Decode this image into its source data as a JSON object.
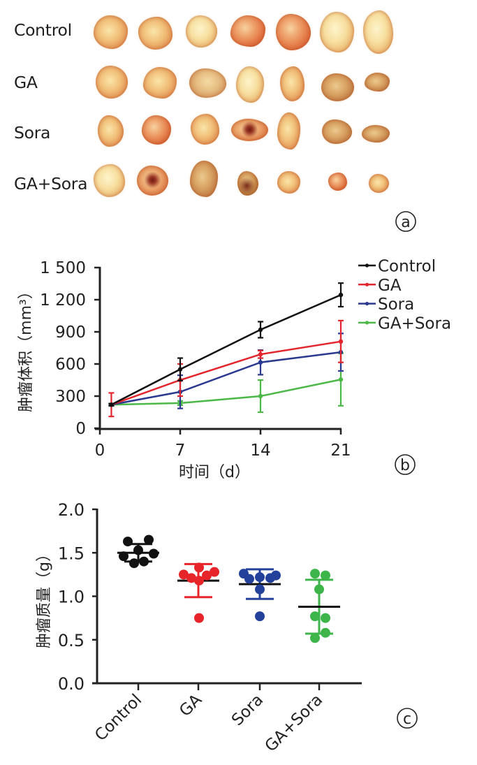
{
  "figure": {
    "panel_a": {
      "panel_label": "a",
      "groups": [
        "Control",
        "GA",
        "Sora",
        "GA+Sora"
      ],
      "specimens_per_group": 7
    }
  },
  "chart_data": [
    {
      "type": "line",
      "title": "",
      "panel_label": "b",
      "xlabel": "时间（d）",
      "ylabel": "肿瘤体积（mm³）",
      "x": [
        1,
        7,
        14,
        21
      ],
      "xlim": [
        0,
        21
      ],
      "ylim": [
        0,
        1500
      ],
      "xticks": [
        0,
        7,
        14,
        21
      ],
      "xtick_labels": [
        "0",
        "7",
        "14",
        "21"
      ],
      "yticks": [
        0,
        300,
        600,
        900,
        1200,
        1500
      ],
      "ytick_labels": [
        "0",
        "300",
        "600",
        "900",
        "1 200",
        "1 500"
      ],
      "grid": false,
      "legend": "top-right",
      "series": [
        {
          "name": "Control",
          "color": "#111111",
          "values": [
            220,
            550,
            920,
            1245
          ],
          "error": [
            10,
            105,
            75,
            110
          ]
        },
        {
          "name": "GA",
          "color": "#e3262d",
          "values": [
            220,
            450,
            690,
            810
          ],
          "error": [
            110,
            150,
            35,
            195
          ]
        },
        {
          "name": "Sora",
          "color": "#2b3990",
          "values": [
            220,
            340,
            615,
            710
          ],
          "error": [
            10,
            155,
            115,
            175
          ]
        },
        {
          "name": "GA+Sora",
          "color": "#4cb848",
          "values": [
            220,
            235,
            300,
            455
          ],
          "error": [
            10,
            20,
            150,
            245
          ]
        }
      ]
    },
    {
      "type": "scatter",
      "title": "",
      "panel_label": "c",
      "xlabel": "",
      "ylabel": "肿瘤质量（g）",
      "categories": [
        "Control",
        "GA",
        "Sora",
        "GA+Sora"
      ],
      "ylim": [
        0,
        2.0
      ],
      "yticks": [
        0,
        0.5,
        1.0,
        1.5,
        2.0
      ],
      "ytick_labels": [
        "0.0",
        "0.5",
        "1.0",
        "1.5",
        "2.0"
      ],
      "grid": false,
      "mean_line_color": "#111111",
      "series": [
        {
          "name": "Control",
          "color": "#111111",
          "points": [
            1.63,
            1.65,
            1.46,
            1.53,
            1.49,
            1.38,
            1.4
          ],
          "mean": 1.5,
          "sd": 0.1
        },
        {
          "name": "GA",
          "color": "#e8242b",
          "points": [
            1.25,
            1.33,
            1.28,
            1.21,
            1.24,
            1.18,
            0.75
          ],
          "mean": 1.18,
          "sd": 0.19
        },
        {
          "name": "Sora",
          "color": "#23409a",
          "points": [
            1.26,
            1.2,
            1.22,
            1.21,
            1.24,
            1.08,
            0.77
          ],
          "mean": 1.14,
          "sd": 0.17
        },
        {
          "name": "GA+Sora",
          "color": "#3db54a",
          "points": [
            1.26,
            1.24,
            1.08,
            0.77,
            0.75,
            0.58,
            0.52
          ],
          "mean": 0.88,
          "sd": 0.31
        }
      ]
    }
  ]
}
